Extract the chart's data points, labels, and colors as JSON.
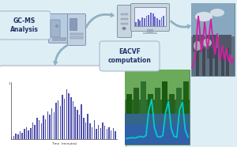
{
  "bg_color": "#ddeef5",
  "gcms_label": "GC-MS\nAnalysis",
  "eacvf_label": "EACVF\ncomputation",
  "chromatogram_bars": [
    0.04,
    0.06,
    0.1,
    0.08,
    0.14,
    0.12,
    0.18,
    0.22,
    0.16,
    0.2,
    0.3,
    0.26,
    0.38,
    0.34,
    0.28,
    0.42,
    0.36,
    0.5,
    0.44,
    0.55,
    0.48,
    0.65,
    0.7,
    0.6,
    0.8,
    0.72,
    0.9,
    0.82,
    0.75,
    0.68,
    0.58,
    0.52,
    0.44,
    0.62,
    0.38,
    0.3,
    0.46,
    0.28,
    0.22,
    0.34,
    0.18,
    0.26,
    0.2,
    0.3,
    0.24,
    0.18,
    0.22,
    0.16,
    0.2,
    0.14
  ],
  "bar_color": "#3535a0",
  "pink_line": [
    0.08,
    0.12,
    0.18,
    0.25,
    0.4,
    0.75,
    0.95,
    0.8,
    0.55,
    0.35,
    0.45,
    0.65,
    0.85,
    0.7,
    0.5,
    0.4,
    0.55,
    0.75,
    0.9,
    0.7,
    0.55,
    0.4,
    0.3,
    0.5,
    0.65,
    0.45,
    0.3,
    0.2,
    0.35,
    0.45,
    0.3,
    0.2,
    0.3,
    0.4,
    0.25,
    0.18,
    0.28,
    0.2,
    0.15,
    0.22
  ],
  "pink_color": "#d020a0",
  "cyan_line": [
    0.05,
    0.06,
    0.07,
    0.06,
    0.08,
    0.1,
    0.08,
    0.12,
    0.7,
    0.95,
    0.3,
    0.1,
    0.08,
    0.12,
    0.65,
    0.9,
    0.28,
    0.1,
    0.08,
    0.72,
    0.88,
    0.25,
    0.08
  ],
  "cyan_color": "#00cccc",
  "monitor_bars": [
    0.25,
    0.45,
    0.35,
    0.55,
    0.48,
    0.65,
    0.72,
    0.85,
    0.78,
    0.6,
    0.5,
    0.42,
    0.55,
    0.65
  ],
  "monitor_bar_color": "#5555bb",
  "panel_bg": "#ffffff",
  "panel_border": "#bbbbcc",
  "label_bg": "#ddeef5",
  "label_border": "#aabbcc",
  "arrow_color_top": "#88aabb",
  "arrow_color_side": "#88aabb"
}
